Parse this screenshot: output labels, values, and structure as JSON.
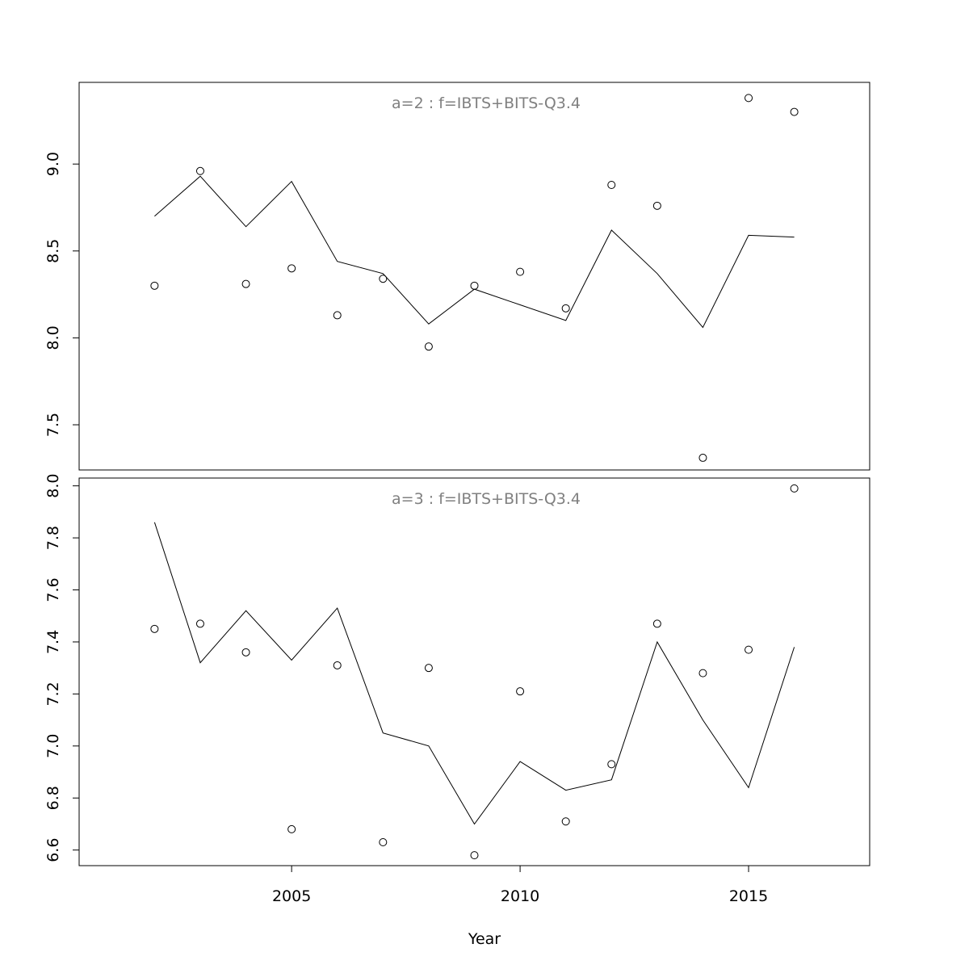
{
  "chart_data": [
    {
      "type": "line",
      "title": "a=2  :  f=IBTS+BITS-Q3.4",
      "xlabel": "",
      "ylabel": "",
      "ylim": [
        7.24,
        9.47
      ],
      "yticks": [
        "7.5",
        "8.0",
        "8.5",
        "9.0"
      ],
      "x": [
        2002,
        2003,
        2004,
        2005,
        2006,
        2007,
        2008,
        2009,
        2010,
        2011,
        2012,
        2013,
        2014,
        2015,
        2016
      ],
      "series": [
        {
          "style": "points",
          "values": [
            8.3,
            8.96,
            8.31,
            8.4,
            8.13,
            8.34,
            7.95,
            8.3,
            8.38,
            8.17,
            8.88,
            8.76,
            7.31,
            9.38,
            9.3
          ]
        },
        {
          "style": "line",
          "values": [
            8.7,
            8.93,
            8.64,
            8.9,
            8.44,
            8.37,
            8.08,
            8.28,
            8.19,
            8.1,
            8.62,
            8.37,
            8.06,
            8.59,
            8.58
          ]
        }
      ],
      "grid": false
    },
    {
      "type": "line",
      "title": "a=3  :  f=IBTS+BITS-Q3.4",
      "xlabel": "Year",
      "ylabel": "",
      "ylim": [
        6.54,
        8.03
      ],
      "yticks": [
        "6.6",
        "6.8",
        "7.0",
        "7.2",
        "7.4",
        "7.6",
        "7.8",
        "8.0"
      ],
      "x": [
        2002,
        2003,
        2004,
        2005,
        2006,
        2007,
        2008,
        2009,
        2010,
        2011,
        2012,
        2013,
        2014,
        2015,
        2016
      ],
      "xticks": [
        "2005",
        "2010",
        "2015"
      ],
      "xlim": [
        2000.35,
        2017.65
      ],
      "series": [
        {
          "style": "points",
          "values": [
            7.45,
            7.47,
            7.36,
            6.68,
            7.31,
            6.63,
            7.3,
            6.58,
            7.21,
            6.71,
            6.93,
            7.47,
            7.28,
            7.37,
            7.99
          ]
        },
        {
          "style": "line",
          "values": [
            7.86,
            7.32,
            7.52,
            7.33,
            7.53,
            7.05,
            7.0,
            6.7,
            6.94,
            6.83,
            6.87,
            7.4,
            7.1,
            6.84,
            7.38
          ]
        }
      ],
      "grid": false
    }
  ]
}
